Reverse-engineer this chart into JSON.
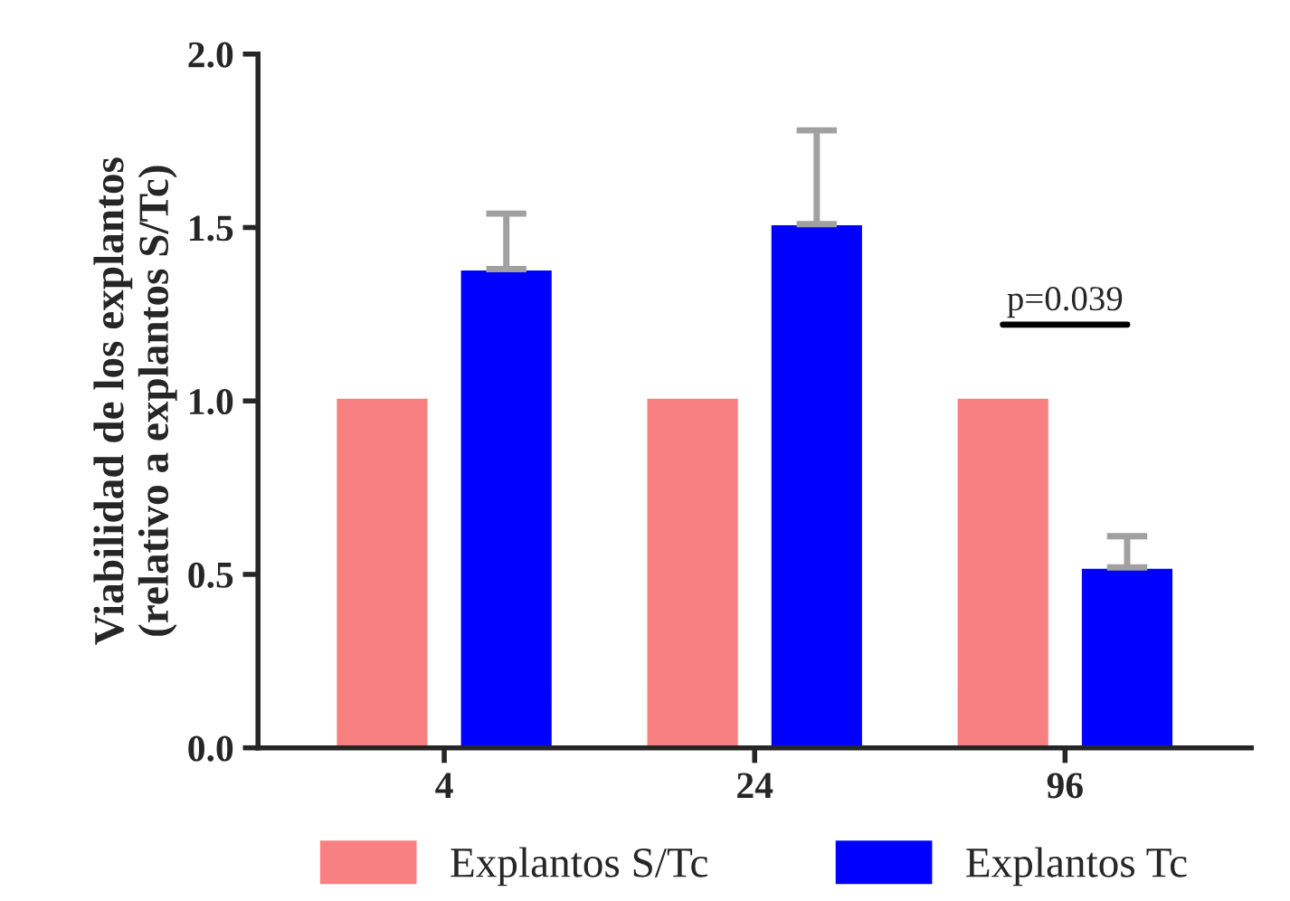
{
  "chart_data": {
    "type": "bar",
    "ylabel": "Viabilidad de los explantos\n(relativo a explantos S/Tc)",
    "categories": [
      "4",
      "24",
      "96"
    ],
    "series": [
      {
        "name": "Explantos S/Tc",
        "color": "#f88080",
        "values": [
          1.01,
          1.01,
          1.01
        ]
      },
      {
        "name": "Explantos Tc",
        "color": "#0000ff",
        "values": [
          1.38,
          1.51,
          0.52
        ],
        "errors": [
          [
            1.38,
            1.54
          ],
          [
            1.51,
            1.78
          ],
          [
            0.52,
            0.61
          ]
        ]
      }
    ],
    "ylim": [
      0,
      2.0
    ],
    "yticks": [
      {
        "value": 0,
        "label": "0.0"
      },
      0.5,
      {
        "value": 1,
        "label": "1.0"
      },
      1.5,
      {
        "value": 2,
        "label": "2.0"
      }
    ],
    "annotations": [
      "p=0.039"
    ],
    "legend": "bottom",
    "grid": false
  }
}
